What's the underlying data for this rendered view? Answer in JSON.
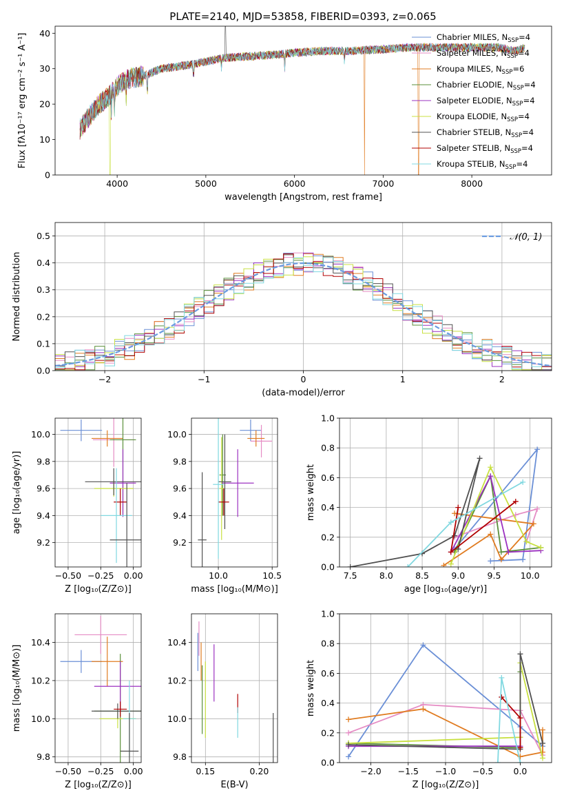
{
  "title": "PLATE=2140, MJD=53858, FIBERID=0393, z=0.065",
  "colors": {
    "chabrier_miles": "#6a8fd6",
    "salpeter_miles": "#e58cc4",
    "kroupa_miles": "#e07b20",
    "chabrier_elodie": "#5a8f3a",
    "salpeter_elodie": "#9b30c0",
    "kroupa_elodie": "#c8e040",
    "chabrier_stelib": "#505050",
    "salpeter_stelib": "#b00000",
    "kroupa_stelib": "#80d8e0",
    "gaussian": "#6a9be0"
  },
  "chart_data": [
    {
      "id": "spectrum",
      "type": "line",
      "title": "PLATE=2140, MJD=53858, FIBERID=0393, z=0.065",
      "xlabel": "wavelength [Angstrom, rest frame]",
      "ylabel": "Flux [fλ10⁻¹⁷ erg cm⁻² s⁻¹ A⁻¹]",
      "xlim": [
        3300,
        8900
      ],
      "ylim": [
        0,
        42
      ],
      "xticks": [
        4000,
        5000,
        6000,
        7000,
        8000
      ],
      "yticks": [
        0,
        10,
        20,
        30,
        40
      ],
      "grid": false,
      "legend_position": "right",
      "legend": [
        {
          "label": "Chabrier MILES, N",
          "sub": "SSP",
          "tail": "=4",
          "color": "chabrier_miles"
        },
        {
          "label": "Salpeter MILES, N",
          "sub": "SSP",
          "tail": "=4",
          "color": "salpeter_miles"
        },
        {
          "label": "Kroupa MILES, N",
          "sub": "SSP",
          "tail": "=6",
          "color": "kroupa_miles"
        },
        {
          "label": "Chabrier ELODIE, N",
          "sub": "SSP",
          "tail": "=4",
          "color": "chabrier_elodie"
        },
        {
          "label": "Salpeter ELODIE, N",
          "sub": "SSP",
          "tail": "=4",
          "color": "salpeter_elodie"
        },
        {
          "label": "Kroupa ELODIE, N",
          "sub": "SSP",
          "tail": "=4",
          "color": "kroupa_elodie"
        },
        {
          "label": "Chabrier STELIB, N",
          "sub": "SSP",
          "tail": "=4",
          "color": "chabrier_stelib"
        },
        {
          "label": "Salpeter STELIB, N",
          "sub": "SSP",
          "tail": "=4",
          "color": "salpeter_stelib"
        },
        {
          "label": "Kroupa STELIB, N",
          "sub": "SSP",
          "tail": "=4",
          "color": "kroupa_stelib"
        }
      ],
      "continuum": [
        [
          3580,
          13
        ],
        [
          3700,
          17
        ],
        [
          3800,
          20
        ],
        [
          3900,
          22
        ],
        [
          4000,
          25
        ],
        [
          4100,
          27
        ],
        [
          4300,
          28
        ],
        [
          4500,
          30
        ],
        [
          4800,
          31
        ],
        [
          5000,
          32
        ],
        [
          5200,
          33
        ],
        [
          5500,
          33.5
        ],
        [
          5800,
          34
        ],
        [
          6000,
          34.5
        ],
        [
          6300,
          35
        ],
        [
          6600,
          35
        ],
        [
          7000,
          35.5
        ],
        [
          7300,
          36
        ],
        [
          7600,
          36
        ],
        [
          8000,
          36
        ],
        [
          8300,
          36
        ],
        [
          8500,
          35
        ],
        [
          8600,
          36
        ]
      ],
      "absorption": [
        [
          3934,
          5
        ],
        [
          3969,
          6
        ],
        [
          4102,
          5
        ],
        [
          4340,
          6
        ],
        [
          4861,
          4
        ],
        [
          5175,
          3
        ],
        [
          5890,
          4
        ],
        [
          6563,
          3
        ]
      ],
      "dips_to_zero": [
        {
          "x": 3920,
          "color": "kroupa_elodie"
        },
        {
          "x": 6790,
          "color": "kroupa_miles"
        },
        {
          "x": 7400,
          "color": "kroupa_miles"
        }
      ],
      "spikes": [
        {
          "x": 5220,
          "top": 42,
          "color": "chabrier_stelib"
        }
      ]
    },
    {
      "id": "residuals",
      "type": "histogram",
      "xlabel": "(data-model)/error",
      "ylabel": "Normed distribution",
      "xlim": [
        -2.5,
        2.5
      ],
      "ylim": [
        0,
        0.55
      ],
      "xticks": [
        -2,
        -1,
        0,
        1,
        2
      ],
      "xtick_labels": [
        "−2",
        "−1",
        "0",
        "1",
        "2"
      ],
      "yticks": [
        0.0,
        0.1,
        0.2,
        0.3,
        0.4,
        0.5
      ],
      "ytick_labels": [
        "0.0",
        "0.1",
        "0.2",
        "0.3",
        "0.4",
        "0.5"
      ],
      "grid": true,
      "legend_position": "upper right",
      "gaussian_label": "𝒩(0, 1)",
      "bin_width": 0.1
    },
    {
      "id": "age_vs_z",
      "type": "errorbar",
      "xlabel": "Z [log₁₀(Z/Z⊙)]",
      "ylabel": "age  [log₁₀(age/yr)]",
      "xlim": [
        -0.6,
        0.06
      ],
      "ylim": [
        9.02,
        10.12
      ],
      "xticks": [
        -0.5,
        -0.25,
        0.0
      ],
      "xtick_labels": [
        "−0.50",
        "−0.25",
        "0.00"
      ],
      "yticks": [
        9.2,
        9.4,
        9.6,
        9.8,
        10.0
      ],
      "ytick_labels": [
        "9.2",
        "9.4",
        "9.6",
        "9.8",
        "10.0"
      ],
      "grid": true,
      "points": [
        {
          "x": -0.4,
          "xerr": 0.16,
          "y": 10.03,
          "yerr": 0.08,
          "color": "chabrier_miles"
        },
        {
          "x": -0.15,
          "xerr": 0.16,
          "y": 9.96,
          "yerr": 0.2,
          "color": "salpeter_miles"
        },
        {
          "x": -0.2,
          "xerr": 0.12,
          "y": 9.97,
          "yerr": 0.06,
          "color": "kroupa_miles"
        },
        {
          "x": -0.08,
          "xerr": 0.1,
          "y": 9.96,
          "yerr": 0.55,
          "color": "chabrier_elodie"
        },
        {
          "x": -0.08,
          "xerr": 0.1,
          "y": 9.64,
          "yerr": 0.25,
          "color": "salpeter_elodie"
        },
        {
          "x": -0.15,
          "xerr": 0.15,
          "y": 9.6,
          "yerr": 0.06,
          "color": "kroupa_elodie"
        },
        {
          "x": -0.15,
          "xerr": 0.22,
          "y": 9.65,
          "yerr": 0.1,
          "color": "chabrier_stelib"
        },
        {
          "x": -0.1,
          "xerr": 0.05,
          "y": 9.5,
          "yerr": 0.1,
          "color": "salpeter_stelib"
        },
        {
          "x": -0.13,
          "xerr": 0.12,
          "y": 9.4,
          "yerr": 0.35,
          "color": "kroupa_stelib"
        },
        {
          "x": -0.05,
          "xerr": 0.13,
          "y": 9.22,
          "yerr": 0.42,
          "color": "chabrier_stelib"
        }
      ]
    },
    {
      "id": "age_vs_mass",
      "type": "errorbar",
      "xlabel": "mass [log₁₀(M/M⊙)]",
      "ylabel": "",
      "xlim": [
        9.75,
        10.55
      ],
      "ylim": [
        9.02,
        10.12
      ],
      "xticks": [
        10.0,
        10.5
      ],
      "xtick_labels": [
        "10.0",
        "10.5"
      ],
      "yticks": [
        9.2,
        9.4,
        9.6,
        9.8,
        10.0
      ],
      "ytick_labels": [
        "9.2",
        "9.4",
        "9.6",
        "9.8",
        "10.0"
      ],
      "grid": true,
      "points": [
        {
          "x": 10.3,
          "xerr": 0.1,
          "y": 10.03,
          "yerr": 0.08,
          "color": "chabrier_miles"
        },
        {
          "x": 10.4,
          "xerr": 0.1,
          "y": 9.95,
          "yerr": 0.12,
          "color": "salpeter_miles"
        },
        {
          "x": 10.35,
          "xerr": 0.08,
          "y": 9.97,
          "yerr": 0.06,
          "color": "kroupa_miles"
        },
        {
          "x": 10.04,
          "xerr": 0.03,
          "y": 9.7,
          "yerr": 0.3,
          "color": "chabrier_elodie"
        },
        {
          "x": 10.18,
          "xerr": 0.15,
          "y": 9.64,
          "yerr": 0.25,
          "color": "salpeter_elodie"
        },
        {
          "x": 10.03,
          "xerr": 0.02,
          "y": 9.6,
          "yerr": 0.38,
          "color": "kroupa_elodie"
        },
        {
          "x": 10.06,
          "xerr": 0.06,
          "y": 9.65,
          "yerr": 0.35,
          "color": "chabrier_stelib"
        },
        {
          "x": 10.05,
          "xerr": 0.05,
          "y": 9.5,
          "yerr": 0.1,
          "color": "salpeter_stelib"
        },
        {
          "x": 10.0,
          "xerr": 0.05,
          "y": 9.63,
          "yerr": 0.55,
          "color": "kroupa_stelib"
        },
        {
          "x": 9.85,
          "xerr": 0.04,
          "y": 9.22,
          "yerr": 0.5,
          "color": "chabrier_stelib"
        }
      ]
    },
    {
      "id": "weight_vs_age",
      "type": "line",
      "xlabel": "age  [log₁₀(age/yr)]",
      "ylabel": "mass weight",
      "xlim": [
        7.35,
        10.3
      ],
      "ylim": [
        0,
        1
      ],
      "xticks": [
        7.5,
        8.0,
        8.5,
        9.0,
        9.5,
        10.0
      ],
      "xtick_labels": [
        "7.5",
        "8.0",
        "8.5",
        "9.0",
        "9.5",
        "10.0"
      ],
      "yticks": [
        0.0,
        0.2,
        0.4,
        0.6,
        0.8,
        1.0
      ],
      "ytick_labels": [
        "0.0",
        "0.2",
        "0.4",
        "0.6",
        "0.8",
        "1.0"
      ],
      "grid": true,
      "series": [
        {
          "color": "chabrier_miles",
          "x": [
            9.45,
            9.9,
            10.1,
            8.95
          ],
          "y": [
            0.04,
            0.05,
            0.79,
            0.12
          ]
        },
        {
          "color": "salpeter_miles",
          "x": [
            8.95,
            9.8,
            10.1,
            9.95
          ],
          "y": [
            0.2,
            0.35,
            0.39,
            0.17
          ]
        },
        {
          "color": "kroupa_miles",
          "x": [
            8.8,
            9.45,
            9.6,
            10.05,
            8.95
          ],
          "y": [
            0.01,
            0.22,
            0.05,
            0.29,
            0.36
          ]
        },
        {
          "color": "chabrier_elodie",
          "x": [
            8.95,
            9.45,
            9.6,
            10.15
          ],
          "y": [
            0.1,
            0.61,
            0.1,
            0.13
          ]
        },
        {
          "color": "salpeter_elodie",
          "x": [
            8.9,
            9.45,
            9.7,
            10.15
          ],
          "y": [
            0.1,
            0.61,
            0.1,
            0.11
          ]
        },
        {
          "color": "kroupa_elodie",
          "x": [
            8.9,
            9.45,
            9.95,
            10.15
          ],
          "y": [
            0.02,
            0.67,
            0.17,
            0.13
          ]
        },
        {
          "color": "chabrier_stelib",
          "x": [
            7.5,
            8.5,
            8.95,
            9.3,
            9.0
          ],
          "y": [
            0.0,
            0.09,
            0.21,
            0.73,
            0.12
          ]
        },
        {
          "color": "salpeter_stelib",
          "x": [
            9.0,
            8.9,
            9.8
          ],
          "y": [
            0.4,
            0.1,
            0.44
          ]
        },
        {
          "color": "kroupa_stelib",
          "x": [
            8.3,
            8.9,
            9.9
          ],
          "y": [
            0.0,
            0.3,
            0.57
          ]
        }
      ]
    },
    {
      "id": "mass_vs_z",
      "type": "errorbar",
      "xlabel": "Z [log₁₀(Z/Z⊙)]",
      "ylabel": "mass [log₁₀(M/M⊙)]",
      "xlim": [
        -0.6,
        0.06
      ],
      "ylim": [
        9.77,
        10.55
      ],
      "xticks": [
        -0.5,
        -0.25,
        0.0
      ],
      "xtick_labels": [
        "−0.50",
        "−0.25",
        "0.00"
      ],
      "yticks": [
        9.8,
        10.0,
        10.2,
        10.4
      ],
      "ytick_labels": [
        "9.8",
        "10.0",
        "10.2",
        "10.4"
      ],
      "grid": true,
      "points": [
        {
          "x": -0.4,
          "xerr": 0.16,
          "y": 10.3,
          "yerr": 0.06,
          "color": "chabrier_miles"
        },
        {
          "x": -0.25,
          "xerr": 0.2,
          "y": 10.44,
          "yerr": 0.1,
          "color": "salpeter_miles"
        },
        {
          "x": -0.2,
          "xerr": 0.12,
          "y": 10.3,
          "yerr": 0.13,
          "color": "kroupa_miles"
        },
        {
          "x": -0.1,
          "xerr": 0.2,
          "y": 10.04,
          "yerr": 0.3,
          "color": "chabrier_elodie"
        },
        {
          "x": -0.1,
          "xerr": 0.2,
          "y": 10.17,
          "yerr": 0.13,
          "color": "salpeter_elodie"
        },
        {
          "x": -0.12,
          "xerr": 0.14,
          "y": 10.0,
          "yerr": 0.05,
          "color": "kroupa_elodie"
        },
        {
          "x": -0.12,
          "xerr": 0.2,
          "y": 10.04,
          "yerr": 0.04,
          "color": "chabrier_stelib"
        },
        {
          "x": -0.1,
          "xerr": 0.05,
          "y": 10.05,
          "yerr": 0.04,
          "color": "salpeter_stelib"
        },
        {
          "x": -0.03,
          "xerr": 0.05,
          "y": 10.0,
          "yerr": 0.2,
          "color": "kroupa_stelib"
        },
        {
          "x": -0.03,
          "xerr": 0.07,
          "y": 9.83,
          "yerr": 0.2,
          "color": "chabrier_stelib"
        }
      ]
    },
    {
      "id": "mass_vs_ebv",
      "type": "errorbar",
      "xlabel": "E(B-V)",
      "ylabel": "",
      "xlim": [
        0.137,
        0.217
      ],
      "ylim": [
        9.77,
        10.55
      ],
      "xticks": [
        0.15,
        0.2
      ],
      "xtick_labels": [
        "0.15",
        "0.20"
      ],
      "yticks": [
        9.8,
        10.0,
        10.2,
        10.4
      ],
      "ytick_labels": [
        "9.8",
        "10.0",
        "10.2",
        "10.4"
      ],
      "grid": true,
      "points": [
        {
          "x": 0.143,
          "xerr": 0,
          "y": 10.35,
          "yerr": 0.1,
          "color": "chabrier_miles"
        },
        {
          "x": 0.144,
          "xerr": 0,
          "y": 10.42,
          "yerr": 0.09,
          "color": "salpeter_miles"
        },
        {
          "x": 0.146,
          "xerr": 0,
          "y": 10.3,
          "yerr": 0.1,
          "color": "kroupa_miles"
        },
        {
          "x": 0.147,
          "xerr": 0,
          "y": 10.1,
          "yerr": 0.18,
          "color": "chabrier_elodie"
        },
        {
          "x": 0.158,
          "xerr": 0,
          "y": 10.24,
          "yerr": 0.15,
          "color": "salpeter_elodie"
        },
        {
          "x": 0.15,
          "xerr": 0,
          "y": 10.1,
          "yerr": 0.2,
          "color": "kroupa_elodie"
        },
        {
          "x": 0.18,
          "xerr": 0,
          "y": 10.08,
          "yerr": 0.05,
          "color": "salpeter_stelib"
        },
        {
          "x": 0.18,
          "xerr": 0,
          "y": 9.98,
          "yerr": 0.08,
          "color": "kroupa_stelib"
        },
        {
          "x": 0.213,
          "xerr": 0,
          "y": 9.86,
          "yerr": 0.17,
          "color": "chabrier_stelib"
        }
      ]
    },
    {
      "id": "weight_vs_z",
      "type": "line",
      "xlabel": "Z [log₁₀(Z/Z⊙)]",
      "ylabel": "mass weight",
      "xlim": [
        -2.42,
        0.42
      ],
      "ylim": [
        0,
        1
      ],
      "xticks": [
        -2.0,
        -1.5,
        -1.0,
        -0.5,
        0.0
      ],
      "xtick_labels": [
        "−2.0",
        "−1.5",
        "−1.0",
        "−0.5",
        "0.0"
      ],
      "yticks": [
        0.0,
        0.2,
        0.4,
        0.6,
        0.8,
        1.0
      ],
      "ytick_labels": [
        "0.0",
        "0.2",
        "0.4",
        "0.6",
        "0.8",
        "1.0"
      ],
      "grid": true,
      "series": [
        {
          "color": "chabrier_miles",
          "x": [
            -2.3,
            -1.3,
            0.0,
            0.3
          ],
          "y": [
            0.04,
            0.79,
            0.24,
            0.11
          ]
        },
        {
          "color": "salpeter_miles",
          "x": [
            -2.3,
            -1.3,
            0.0,
            0.3
          ],
          "y": [
            0.2,
            0.39,
            0.35,
            0.05
          ]
        },
        {
          "color": "kroupa_miles",
          "x": [
            -2.3,
            -1.3,
            0.0,
            0.3,
            0.3
          ],
          "y": [
            0.29,
            0.36,
            0.04,
            0.07,
            0.22
          ]
        },
        {
          "color": "chabrier_elodie",
          "x": [
            -2.3,
            0.0,
            0.0
          ],
          "y": [
            0.13,
            0.1,
            0.61
          ]
        },
        {
          "color": "salpeter_elodie",
          "x": [
            -2.3,
            0.0,
            0.0
          ],
          "y": [
            0.11,
            0.11,
            0.17
          ]
        },
        {
          "color": "kroupa_elodie",
          "x": [
            -2.3,
            0.0,
            0.0,
            0.3
          ],
          "y": [
            0.13,
            0.17,
            0.67,
            0.03
          ]
        },
        {
          "color": "chabrier_stelib",
          "x": [
            -2.3,
            0.0,
            0.0,
            0.3
          ],
          "y": [
            0.12,
            0.09,
            0.73,
            0.13
          ]
        },
        {
          "color": "salpeter_stelib",
          "x": [
            -0.25,
            0.0,
            0.0
          ],
          "y": [
            0.44,
            0.3,
            0.1
          ]
        },
        {
          "color": "kroupa_stelib",
          "x": [
            -0.3,
            -0.25,
            0.0
          ],
          "y": [
            0.0,
            0.57,
            0.0
          ]
        }
      ]
    }
  ]
}
